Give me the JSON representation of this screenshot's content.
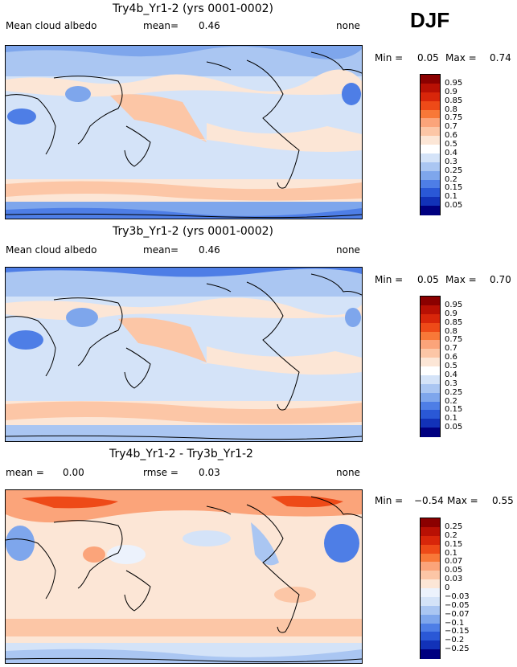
{
  "season": "DJF",
  "panels": [
    {
      "title": "Try4b_Yr1-2 (yrs 0001-0002)",
      "left_label": "Mean cloud albedo",
      "mean_label": "mean=",
      "mean_value": "0.46",
      "right_label": "none",
      "min_label": "Min =",
      "min_value": "0.05",
      "max_label": "Max =",
      "max_value": "0.74"
    },
    {
      "title": "Try3b_Yr1-2 (yrs 0001-0002)",
      "left_label": "Mean cloud albedo",
      "mean_label": "mean=",
      "mean_value": "0.46",
      "right_label": "none",
      "min_label": "Min =",
      "min_value": "0.05",
      "max_label": "Max =",
      "max_value": "0.70"
    },
    {
      "title": "Try4b_Yr1-2 - Try3b_Yr1-2",
      "left_label": "mean =",
      "left_value": "0.00",
      "mid_label": "rmse =",
      "mid_value": "0.03",
      "right_label": "none",
      "min_label": "Min =",
      "min_value": "−0.54",
      "max_label": "Max =",
      "max_value": "0.55"
    }
  ],
  "colorbars": {
    "albedo": {
      "labels": [
        "0.95",
        "0.9",
        "0.85",
        "0.8",
        "0.75",
        "0.7",
        "0.6",
        "0.5",
        "0.4",
        "0.3",
        "0.25",
        "0.2",
        "0.15",
        "0.1",
        "0.05"
      ],
      "colors": [
        "#8b0000",
        "#b81004",
        "#d8260a",
        "#ee4a18",
        "#f87838",
        "#fba47a",
        "#fcc6a6",
        "#fce6d6",
        "#ffffff",
        "#d4e3f8",
        "#aac6f2",
        "#7ea6ec",
        "#4e7ee6",
        "#2a58d6",
        "#1232b8",
        "#000080"
      ]
    },
    "diff": {
      "labels": [
        "0.25",
        "0.2",
        "0.15",
        "0.1",
        "0.07",
        "0.05",
        "0.03",
        "0",
        "−0.03",
        "−0.05",
        "−0.07",
        "−0.1",
        "−0.15",
        "−0.2",
        "−0.25"
      ],
      "colors": [
        "#8b0000",
        "#b81004",
        "#d8260a",
        "#ee4a18",
        "#f87838",
        "#fba47a",
        "#fcc6a6",
        "#fce6d6",
        "#ecf2fc",
        "#d4e3f8",
        "#aac6f2",
        "#7ea6ec",
        "#4e7ee6",
        "#2a58d6",
        "#1232b8",
        "#000080"
      ]
    }
  },
  "chart_data": [
    {
      "type": "heatmap",
      "title": "Try4b_Yr1-2 (yrs 0001-0002)",
      "variable": "Mean cloud albedo",
      "units": "none",
      "season": "DJF",
      "mean": 0.46,
      "min": 0.05,
      "max": 0.74,
      "contour_levels": [
        0.05,
        0.1,
        0.15,
        0.2,
        0.25,
        0.3,
        0.4,
        0.5,
        0.6,
        0.7,
        0.75,
        0.8,
        0.85,
        0.9,
        0.95
      ]
    },
    {
      "type": "heatmap",
      "title": "Try3b_Yr1-2 (yrs 0001-0002)",
      "variable": "Mean cloud albedo",
      "units": "none",
      "season": "DJF",
      "mean": 0.46,
      "min": 0.05,
      "max": 0.7,
      "contour_levels": [
        0.05,
        0.1,
        0.15,
        0.2,
        0.25,
        0.3,
        0.4,
        0.5,
        0.6,
        0.7,
        0.75,
        0.8,
        0.85,
        0.9,
        0.95
      ]
    },
    {
      "type": "heatmap",
      "title": "Try4b_Yr1-2 - Try3b_Yr1-2",
      "units": "none",
      "season": "DJF",
      "mean": 0.0,
      "rmse": 0.03,
      "min": -0.54,
      "max": 0.55,
      "contour_levels": [
        -0.25,
        -0.2,
        -0.15,
        -0.1,
        -0.07,
        -0.05,
        -0.03,
        0,
        0.03,
        0.05,
        0.07,
        0.1,
        0.15,
        0.2,
        0.25
      ]
    }
  ]
}
